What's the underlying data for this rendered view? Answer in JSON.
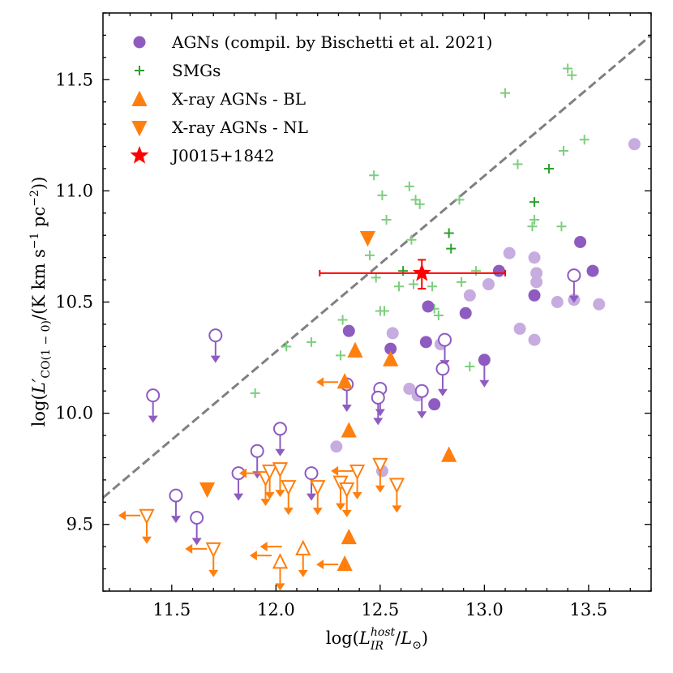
{
  "chart_data": {
    "type": "scatter",
    "xlabel": "log(L_IR^host / L_sun)",
    "ylabel": "log(L'_CO(1-0) / (K km s^-1 pc^-2))",
    "xlim": [
      11.17,
      13.8
    ],
    "ylim": [
      9.2,
      11.8
    ],
    "xticks": [
      "11.5",
      "12.0",
      "12.5",
      "13.0",
      "13.5"
    ],
    "yticks": [
      "9.5",
      "10.0",
      "10.5",
      "11.0",
      "11.5"
    ],
    "legend_location": "upper-left",
    "legend": [
      {
        "key": "agn",
        "label": "AGNs (compil. by Bischetti et al. 2021)"
      },
      {
        "key": "smg",
        "label": "SMGs"
      },
      {
        "key": "bl",
        "label": "X-ray AGNs - BL"
      },
      {
        "key": "nl",
        "label": "X-ray AGNs - NL"
      },
      {
        "key": "target",
        "label": "J0015+1842"
      }
    ],
    "colors": {
      "agn": "#8e5cc0",
      "agn_light": "#c7acdf",
      "smg": "#2ca02c",
      "smg_light": "#7dce7d",
      "xray": "#ff7f0e",
      "target": "#ff0000",
      "relation": "#808080"
    },
    "relation_line": {
      "x": [
        11.17,
        13.8
      ],
      "y": [
        9.62,
        11.7
      ]
    },
    "series": {
      "agn_filled": {
        "x": [
          12.35,
          12.55,
          12.73,
          12.72,
          12.91,
          13.07,
          12.76,
          13.24,
          13.46,
          13.52
        ],
        "y": [
          10.37,
          10.29,
          10.48,
          10.32,
          10.45,
          10.64,
          10.04,
          10.53,
          10.77,
          10.64
        ]
      },
      "agn_light": {
        "x": [
          12.29,
          12.51,
          12.56,
          12.64,
          12.68,
          12.79,
          12.93,
          13.02,
          13.12,
          13.17,
          13.24,
          13.25,
          13.25,
          13.24,
          13.35,
          13.43,
          13.55,
          13.72
        ],
        "y": [
          9.85,
          9.74,
          10.36,
          10.11,
          10.08,
          10.31,
          10.53,
          10.58,
          10.72,
          10.38,
          10.7,
          10.63,
          10.59,
          10.33,
          10.5,
          10.51,
          10.49,
          11.21
        ]
      },
      "agn_upper": {
        "x": [
          11.41,
          11.52,
          11.62,
          11.71,
          11.82,
          11.91,
          12.02,
          12.17,
          12.34,
          12.5,
          12.49,
          12.7,
          12.81,
          12.8,
          13.43
        ],
        "y": [
          10.08,
          9.63,
          9.53,
          10.35,
          9.73,
          9.83,
          9.93,
          9.73,
          10.13,
          10.11,
          10.07,
          10.1,
          10.33,
          10.2,
          10.62
        ]
      },
      "agn_upper_filled": {
        "x": [
          13.0
        ],
        "y": [
          10.24
        ]
      },
      "smg_dark": {
        "x": [
          12.61,
          12.83,
          12.84,
          13.24,
          13.31
        ],
        "y": [
          10.64,
          10.81,
          10.74,
          10.95,
          11.1
        ]
      },
      "smg_light": {
        "x": [
          11.9,
          12.05,
          12.17,
          12.31,
          12.32,
          12.45,
          12.47,
          12.48,
          12.5,
          12.51,
          12.52,
          12.53,
          12.59,
          12.64,
          12.65,
          12.66,
          12.67,
          12.69,
          12.75,
          12.76,
          12.78,
          12.88,
          12.89,
          12.93,
          12.96,
          13.1,
          13.16,
          13.23,
          13.24,
          13.37,
          13.38,
          13.4,
          13.42,
          13.48
        ],
        "y": [
          10.09,
          10.3,
          10.32,
          10.26,
          10.42,
          10.71,
          11.07,
          10.61,
          10.46,
          10.98,
          10.46,
          10.87,
          10.57,
          11.02,
          10.78,
          10.58,
          10.96,
          10.94,
          10.57,
          10.47,
          10.44,
          10.96,
          10.59,
          10.21,
          10.64,
          11.44,
          11.12,
          10.84,
          10.87,
          10.84,
          11.18,
          11.55,
          11.52,
          11.23
        ]
      },
      "xray_bl": {
        "x": [
          12.33,
          12.35,
          12.38,
          12.55,
          12.35,
          12.33,
          12.83
        ],
        "y": [
          10.14,
          9.92,
          10.28,
          10.24,
          9.44,
          9.32,
          9.81
        ]
      },
      "xray_nl": {
        "x": [
          11.67,
          12.44
        ],
        "y": [
          9.66,
          10.79
        ]
      },
      "xray_nl_upper": {
        "x": [
          11.38,
          11.7,
          11.95,
          11.97,
          12.02,
          12.06,
          12.2,
          12.39,
          12.5,
          12.58,
          12.31,
          12.34
        ],
        "y": [
          9.54,
          9.39,
          9.71,
          9.74,
          9.75,
          9.67,
          9.67,
          9.74,
          9.77,
          9.68,
          9.69,
          9.66
        ]
      },
      "xray_nl_upper_left": {
        "x": [
          11.38,
          11.7,
          11.96,
          12.01,
          12.06,
          12.4
        ],
        "y": [
          9.54,
          9.39,
          9.73,
          9.36,
          9.4,
          9.74
        ]
      },
      "xray_up_open": {
        "x": [
          12.02,
          12.13
        ],
        "y": [
          9.33,
          9.39
        ]
      }
    },
    "target": {
      "label": "J0015+1842",
      "x": 12.7,
      "y": 10.63,
      "xerr": [
        12.21,
        13.1
      ],
      "yerr": [
        10.56,
        10.69
      ]
    }
  }
}
